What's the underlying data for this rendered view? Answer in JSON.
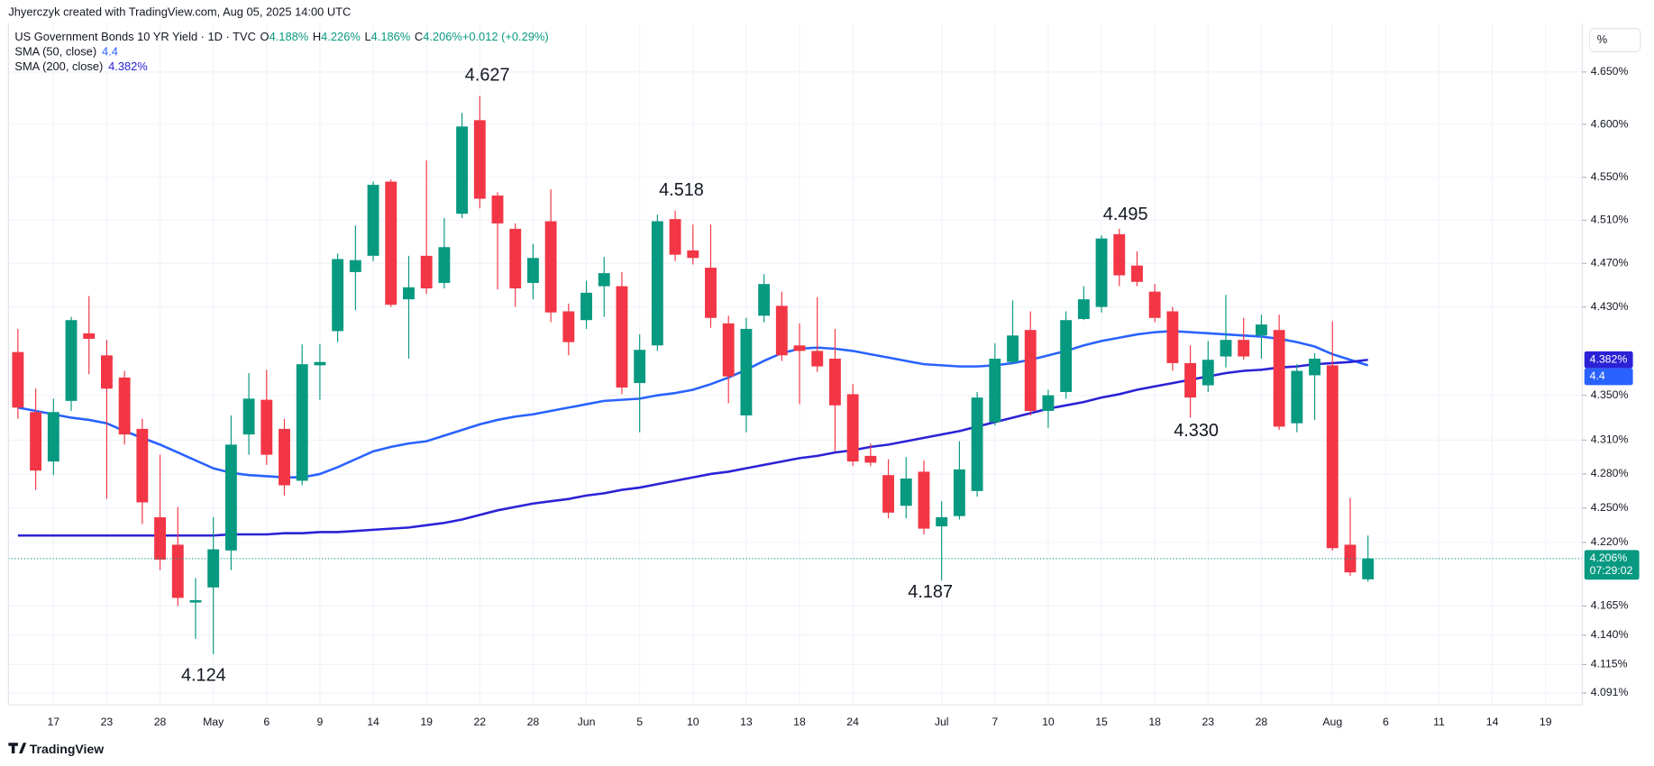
{
  "header": {
    "credit": "Jhyerczyk created with TradingView.com, Aug 05, 2025 14:00 UTC"
  },
  "toolbar": {
    "scale_button": "%"
  },
  "footer": {
    "brand": "TradingView"
  },
  "chart_data": {
    "type": "candlestick",
    "symbol": "US Government Bonds 10 YR Yield · 1D · TVC",
    "ohlc_legend": [
      {
        "label": "O",
        "value": "4.188%"
      },
      {
        "label": "H",
        "value": "4.226%"
      },
      {
        "label": "L",
        "value": "4.186%"
      },
      {
        "label": "C",
        "value": "4.206%"
      },
      {
        "label": "",
        "value": "+0.012 (+0.29%)"
      }
    ],
    "log_scale": true,
    "grid": true,
    "up_color": "#089981",
    "down_color": "#f23645",
    "ylim": [
      4.081,
      4.697
    ],
    "yticks": [
      {
        "value": 4.65,
        "label": "4.650%"
      },
      {
        "value": 4.6,
        "label": "4.600%"
      },
      {
        "value": 4.55,
        "label": "4.550%"
      },
      {
        "value": 4.51,
        "label": "4.510%"
      },
      {
        "value": 4.47,
        "label": "4.470%"
      },
      {
        "value": 4.43,
        "label": "4.430%"
      },
      {
        "value": 4.35,
        "label": "4.350%"
      },
      {
        "value": 4.31,
        "label": "4.310%"
      },
      {
        "value": 4.28,
        "label": "4.280%"
      },
      {
        "value": 4.25,
        "label": "4.250%"
      },
      {
        "value": 4.22,
        "label": "4.220%"
      },
      {
        "value": 4.165,
        "label": "4.165%"
      },
      {
        "value": 4.14,
        "label": "4.140%"
      },
      {
        "value": 4.115,
        "label": "4.115%"
      },
      {
        "value": 4.091,
        "label": "4.091%"
      }
    ],
    "categories": [
      null,
      null,
      "17",
      null,
      null,
      "23",
      null,
      null,
      "28",
      null,
      null,
      "May",
      null,
      null,
      "6",
      null,
      null,
      "9",
      null,
      null,
      "14",
      null,
      null,
      "19",
      null,
      null,
      "22",
      null,
      null,
      "28",
      null,
      null,
      "Jun",
      null,
      null,
      "5",
      null,
      null,
      "10",
      null,
      null,
      "13",
      null,
      null,
      "18",
      null,
      null,
      "24",
      null,
      null,
      null,
      null,
      "Jul",
      null,
      null,
      "7",
      null,
      null,
      "10",
      null,
      null,
      "15",
      null,
      null,
      "18",
      null,
      null,
      "23",
      null,
      null,
      "28",
      null,
      null,
      null,
      "Aug",
      null,
      null,
      "6",
      null,
      null,
      "11",
      null,
      null,
      "14",
      null,
      null,
      "19"
    ],
    "open": [
      4.389,
      4.335,
      4.291,
      4.345,
      4.406,
      4.386,
      4.366,
      4.32,
      4.242,
      4.218,
      4.168,
      4.181,
      4.213,
      4.315,
      4.346,
      4.32,
      4.274,
      4.377,
      4.408,
      4.462,
      4.477,
      4.546,
      4.437,
      4.477,
      4.452,
      4.516,
      4.604,
      4.533,
      4.502,
      4.452,
      4.509,
      4.426,
      4.418,
      4.449,
      4.449,
      4.361,
      4.395,
      4.511,
      4.482,
      4.466,
      4.415,
      4.332,
      4.422,
      4.431,
      4.395,
      4.39,
      4.383,
      4.351,
      4.296,
      4.279,
      4.252,
      4.282,
      4.234,
      4.243,
      4.265,
      4.326,
      4.38,
      4.409,
      4.336,
      4.353,
      4.419,
      4.43,
      4.497,
      4.468,
      4.444,
      4.426,
      4.379,
      4.359,
      4.385,
      4.4,
      4.404,
      4.409,
      4.325,
      4.368,
      4.377,
      4.218,
      4.188,
      null,
      null,
      null,
      null,
      null,
      null,
      null,
      null,
      null,
      null
    ],
    "high": [
      4.41,
      4.356,
      4.347,
      4.421,
      4.44,
      4.4,
      4.372,
      4.329,
      4.297,
      4.251,
      4.189,
      4.242,
      4.332,
      4.37,
      4.373,
      4.329,
      4.396,
      4.396,
      4.479,
      4.505,
      4.546,
      4.548,
      4.477,
      4.566,
      4.512,
      4.611,
      4.627,
      4.536,
      4.507,
      4.488,
      4.539,
      4.433,
      4.454,
      4.476,
      4.462,
      4.405,
      4.515,
      4.519,
      4.506,
      4.506,
      4.422,
      4.42,
      4.46,
      4.444,
      4.415,
      4.439,
      4.41,
      4.36,
      4.307,
      4.293,
      4.295,
      4.292,
      4.256,
      4.309,
      4.353,
      4.397,
      4.436,
      4.426,
      4.355,
      4.426,
      4.449,
      4.496,
      4.502,
      4.481,
      4.451,
      4.43,
      4.395,
      4.399,
      4.441,
      4.42,
      4.423,
      4.423,
      4.378,
      4.388,
      4.417,
      4.259,
      4.226,
      null,
      null,
      null,
      null,
      null,
      null,
      null,
      null,
      null,
      null
    ],
    "low": [
      4.329,
      4.266,
      4.279,
      4.336,
      4.369,
      4.258,
      4.306,
      4.236,
      4.196,
      4.165,
      4.137,
      4.124,
      4.196,
      4.297,
      4.288,
      4.261,
      4.27,
      4.346,
      4.398,
      4.427,
      4.472,
      4.43,
      4.383,
      4.442,
      4.447,
      4.512,
      4.521,
      4.446,
      4.43,
      4.437,
      4.416,
      4.386,
      4.41,
      4.421,
      4.351,
      4.317,
      4.39,
      4.472,
      4.469,
      4.411,
      4.343,
      4.317,
      4.416,
      4.381,
      4.342,
      4.371,
      4.3,
      4.287,
      4.287,
      4.241,
      4.241,
      4.227,
      4.187,
      4.24,
      4.26,
      4.323,
      4.378,
      4.332,
      4.321,
      4.347,
      4.418,
      4.425,
      4.449,
      4.449,
      4.416,
      4.372,
      4.33,
      4.353,
      4.375,
      4.382,
      4.383,
      4.319,
      4.317,
      4.328,
      4.213,
      4.191,
      4.186,
      null,
      null,
      null,
      null,
      null,
      null,
      null,
      null,
      null,
      null
    ],
    "close": [
      4.339,
      4.283,
      4.335,
      4.418,
      4.401,
      4.356,
      4.315,
      4.255,
      4.205,
      4.172,
      4.17,
      4.214,
      4.306,
      4.347,
      4.297,
      4.27,
      4.378,
      4.38,
      4.474,
      4.473,
      4.543,
      4.432,
      4.448,
      4.447,
      4.485,
      4.598,
      4.53,
      4.507,
      4.447,
      4.475,
      4.425,
      4.398,
      4.443,
      4.461,
      4.357,
      4.391,
      4.509,
      4.478,
      4.475,
      4.42,
      4.367,
      4.41,
      4.451,
      4.386,
      4.39,
      4.376,
      4.341,
      4.291,
      4.29,
      4.246,
      4.276,
      4.232,
      4.242,
      4.284,
      4.348,
      4.383,
      4.404,
      4.336,
      4.35,
      4.418,
      4.437,
      4.493,
      4.459,
      4.453,
      4.42,
      4.379,
      4.348,
      4.382,
      4.4,
      4.385,
      4.414,
      4.322,
      4.372,
      4.383,
      4.215,
      4.194,
      4.206,
      null,
      null,
      null,
      null,
      null,
      null,
      null,
      null,
      null,
      null
    ],
    "last_price_label": "4.206%",
    "countdown": "07:29:02",
    "series": [
      {
        "name": "SMA (50, close)",
        "color": "#2962ff",
        "legend_value": "4.4",
        "tag_label": "4.4",
        "values": [
          4.339,
          4.336,
          4.333,
          4.33,
          4.328,
          4.325,
          4.318,
          4.312,
          4.306,
          4.299,
          4.292,
          4.285,
          4.281,
          4.279,
          4.278,
          4.277,
          4.277,
          4.28,
          4.286,
          4.293,
          4.3,
          4.304,
          4.307,
          4.309,
          4.314,
          4.319,
          4.324,
          4.328,
          4.331,
          4.333,
          4.336,
          4.339,
          4.342,
          4.345,
          4.346,
          4.347,
          4.35,
          4.352,
          4.355,
          4.36,
          4.366,
          4.373,
          4.381,
          4.388,
          4.392,
          4.393,
          4.392,
          4.39,
          4.387,
          4.384,
          4.381,
          4.378,
          4.377,
          4.376,
          4.376,
          4.377,
          4.379,
          4.382,
          4.386,
          4.39,
          4.395,
          4.399,
          4.402,
          4.405,
          4.407,
          4.408,
          4.407,
          4.406,
          4.405,
          4.404,
          4.403,
          4.401,
          4.398,
          4.394,
          4.387,
          4.382,
          4.377,
          null,
          null,
          null,
          null,
          null,
          null,
          null,
          null,
          null,
          null
        ]
      },
      {
        "name": "SMA (200, close)",
        "color": "#2b22d6",
        "legend_value": "4.382%",
        "tag_label": "4.382%",
        "values": [
          4.226,
          4.226,
          4.226,
          4.226,
          4.226,
          4.226,
          4.226,
          4.226,
          4.226,
          4.226,
          4.226,
          4.226,
          4.227,
          4.227,
          4.227,
          4.228,
          4.228,
          4.229,
          4.229,
          4.23,
          4.231,
          4.232,
          4.233,
          4.235,
          4.237,
          4.24,
          4.244,
          4.248,
          4.251,
          4.254,
          4.256,
          4.258,
          4.261,
          4.263,
          4.266,
          4.268,
          4.271,
          4.274,
          4.277,
          4.28,
          4.282,
          4.285,
          4.288,
          4.291,
          4.294,
          4.296,
          4.299,
          4.301,
          4.304,
          4.306,
          4.309,
          4.312,
          4.315,
          4.318,
          4.322,
          4.326,
          4.33,
          4.334,
          4.338,
          4.341,
          4.344,
          4.348,
          4.351,
          4.355,
          4.358,
          4.361,
          4.364,
          4.367,
          4.37,
          4.372,
          4.373,
          4.375,
          4.376,
          4.378,
          4.379,
          4.38,
          4.382,
          null,
          null,
          null,
          null,
          null,
          null,
          null,
          null,
          null,
          null
        ]
      }
    ],
    "annotations": [
      "4.627",
      "4.518",
      "4.495",
      "4.330",
      "4.124",
      "4.187"
    ]
  }
}
